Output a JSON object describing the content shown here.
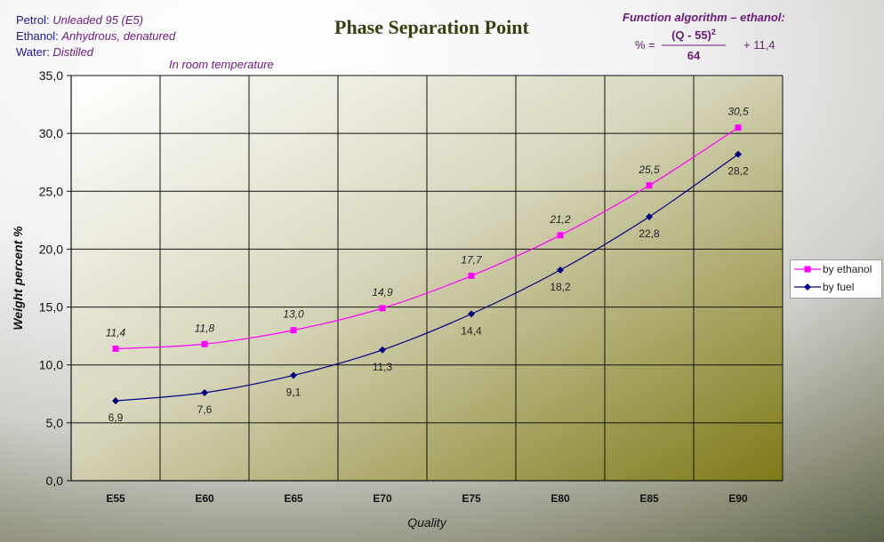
{
  "header": {
    "petrol_label": "Petrol:",
    "petrol_value": "Unleaded 95 (E5)",
    "ethanol_label": "Ethanol:",
    "ethanol_value": "Anhydrous, denatured",
    "water_label": "Water:",
    "water_value": "Distilled",
    "condition": "In room temperature"
  },
  "formula": {
    "title": "Function algorithm – ethanol:",
    "lhs": "% =",
    "numerator": "(Q - 55)",
    "exponent": "2",
    "denominator": "64",
    "addend": "+ 11,4"
  },
  "chart_data": {
    "type": "line",
    "title": "Phase Separation Point",
    "xlabel": "Quality",
    "ylabel": "Weight percent  %",
    "categories": [
      "E55",
      "E60",
      "E65",
      "E70",
      "E75",
      "E80",
      "E85",
      "E90"
    ],
    "ylim": [
      0,
      35
    ],
    "yticks": [
      "0,0",
      "5,0",
      "10,0",
      "15,0",
      "20,0",
      "25,0",
      "30,0",
      "35,0"
    ],
    "grid": true,
    "legend_position": "right",
    "series": [
      {
        "name": "by ethanol",
        "color": "#ff00ff",
        "marker": "square",
        "values": [
          11.4,
          11.8,
          13.0,
          14.9,
          17.7,
          21.2,
          25.5,
          30.5
        ],
        "labels": [
          "11,4",
          "11,8",
          "13,0",
          "14,9",
          "17,7",
          "21,2",
          "25,5",
          "30,5"
        ]
      },
      {
        "name": "by fuel",
        "color": "#000080",
        "marker": "diamond",
        "values": [
          6.9,
          7.6,
          9.1,
          11.3,
          14.4,
          18.2,
          22.8,
          28.2
        ],
        "labels": [
          "6,9",
          "7,6",
          "9,1",
          "11,3",
          "14,4",
          "18,2",
          "22,8",
          "28,2"
        ]
      }
    ]
  }
}
